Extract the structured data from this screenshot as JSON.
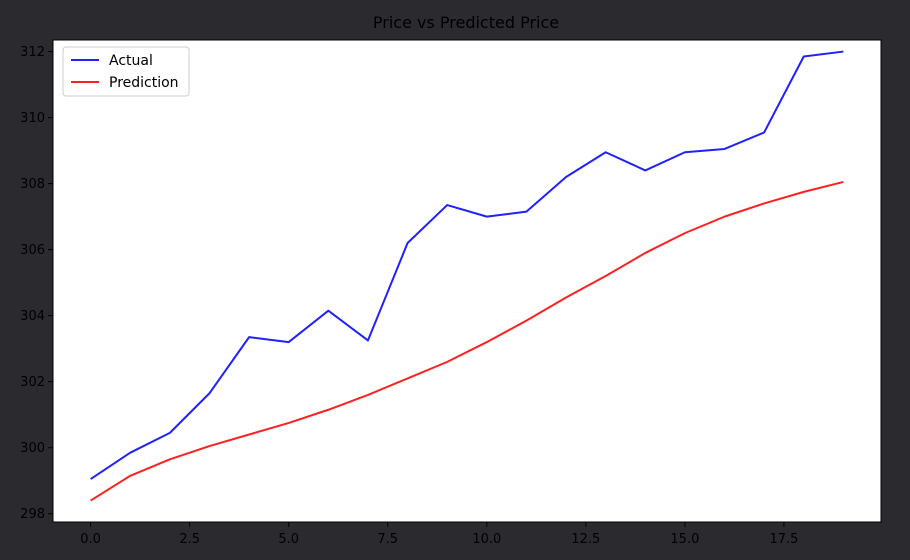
{
  "chart_data": {
    "type": "line",
    "title": "Price vs Predicted Price",
    "xlabel": "",
    "ylabel": "",
    "xlim": [
      -0.95,
      19.95
    ],
    "ylim": [
      297.75,
      312.35
    ],
    "xticks": [
      0.0,
      2.5,
      5.0,
      7.5,
      10.0,
      12.5,
      15.0,
      17.5
    ],
    "xtick_labels": [
      "0.0",
      "2.5",
      "5.0",
      "7.5",
      "10.0",
      "12.5",
      "15.0",
      "17.5"
    ],
    "yticks": [
      298,
      300,
      302,
      304,
      306,
      308,
      310,
      312
    ],
    "ytick_labels": [
      "298",
      "300",
      "302",
      "304",
      "306",
      "308",
      "310",
      "312"
    ],
    "grid": false,
    "legend": "top-left",
    "x": [
      0,
      1,
      2,
      3,
      4,
      5,
      6,
      7,
      8,
      9,
      10,
      11,
      12,
      13,
      14,
      15,
      16,
      17,
      18,
      19
    ],
    "series": [
      {
        "name": "Actual",
        "color": "#2121ff",
        "values": [
          299.05,
          299.85,
          300.45,
          301.65,
          303.35,
          303.2,
          304.15,
          303.25,
          306.2,
          307.35,
          307.0,
          307.15,
          308.2,
          308.95,
          308.4,
          308.95,
          309.05,
          309.55,
          311.85,
          312.0
        ]
      },
      {
        "name": "Prediction",
        "color": "#ff2121",
        "values": [
          298.4,
          299.15,
          299.65,
          300.05,
          300.4,
          300.75,
          301.15,
          301.6,
          302.1,
          302.6,
          303.2,
          303.85,
          304.55,
          305.2,
          305.9,
          306.5,
          307.0,
          307.4,
          307.75,
          308.05
        ]
      }
    ]
  }
}
